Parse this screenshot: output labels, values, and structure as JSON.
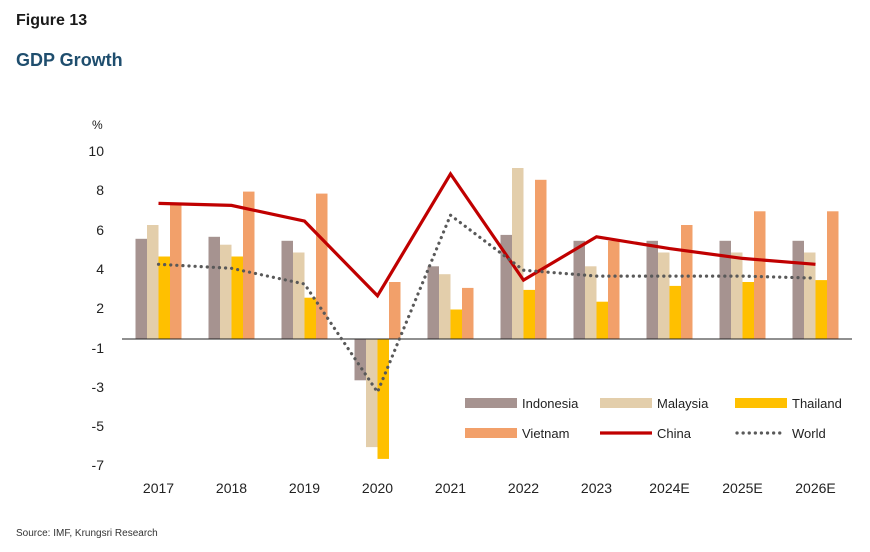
{
  "header": {
    "figure_label": "Figure 13",
    "title": "GDP Growth"
  },
  "source": "Source: IMF, Krungsri Research",
  "chart_data": {
    "type": "bar",
    "title": "GDP Growth",
    "ylabel": "%",
    "xlabel": "",
    "categories": [
      "2017",
      "2018",
      "2019",
      "2020",
      "2021",
      "2022",
      "2023",
      "2024E",
      "2025E",
      "2026E"
    ],
    "yticks": [
      10,
      8,
      6,
      4,
      2,
      -1,
      -3,
      -5,
      -7
    ],
    "ylim": [
      -7,
      10
    ],
    "grid": false,
    "legend_position": "bottom-right",
    "series": [
      {
        "name": "Indonesia",
        "kind": "bar",
        "color": "#a69390",
        "values": [
          5.1,
          5.2,
          5.0,
          -2.1,
          3.7,
          5.3,
          5.0,
          5.0,
          5.0,
          5.0
        ]
      },
      {
        "name": "Malaysia",
        "kind": "bar",
        "color": "#e3ceab",
        "values": [
          5.8,
          4.8,
          4.4,
          -5.5,
          3.3,
          8.7,
          3.7,
          4.4,
          4.4,
          4.4
        ]
      },
      {
        "name": "Thailand",
        "kind": "bar",
        "color": "#ffc000",
        "values": [
          4.2,
          4.2,
          2.1,
          -6.1,
          1.5,
          2.5,
          1.9,
          2.7,
          2.9,
          3.0
        ]
      },
      {
        "name": "Vietnam",
        "kind": "bar",
        "color": "#f2a06a",
        "values": [
          6.9,
          7.5,
          7.4,
          2.9,
          2.6,
          8.1,
          5.0,
          5.8,
          6.5,
          6.5
        ]
      },
      {
        "name": "China",
        "kind": "line",
        "color": "#c00000",
        "values": [
          6.9,
          6.8,
          6.0,
          2.2,
          8.4,
          3.0,
          5.2,
          4.6,
          4.1,
          3.8
        ]
      },
      {
        "name": "World",
        "kind": "dotted",
        "color": "#595959",
        "values": [
          3.8,
          3.6,
          2.8,
          -2.7,
          6.3,
          3.5,
          3.2,
          3.2,
          3.2,
          3.1
        ]
      }
    ]
  }
}
